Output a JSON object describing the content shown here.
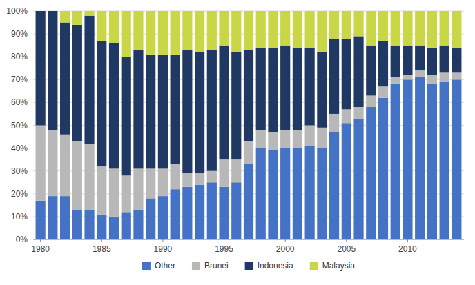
{
  "chart_data": {
    "type": "bar",
    "stacked": true,
    "grid": true,
    "legend": "bottom",
    "x": [
      1980,
      1981,
      1982,
      1983,
      1984,
      1985,
      1986,
      1987,
      1988,
      1989,
      1990,
      1991,
      1992,
      1993,
      1994,
      1995,
      1996,
      1997,
      1998,
      1999,
      2000,
      2001,
      2002,
      2003,
      2004,
      2005,
      2006,
      2007,
      2008,
      2009,
      2010,
      2011,
      2012,
      2013,
      2014
    ],
    "xlim": [
      1979.4,
      2014.6
    ],
    "xticks": [
      1980,
      1985,
      1990,
      1995,
      2000,
      2005,
      2010
    ],
    "ylim": [
      0,
      100
    ],
    "yticks": [
      {
        "value": 0,
        "label": "0%"
      },
      {
        "value": 10,
        "label": "10%"
      },
      {
        "value": 20,
        "label": "20%"
      },
      {
        "value": 30,
        "label": "30%"
      },
      {
        "value": 40,
        "label": "40%"
      },
      {
        "value": 50,
        "label": "50%"
      },
      {
        "value": 60,
        "label": "60%"
      },
      {
        "value": 70,
        "label": "70%"
      },
      {
        "value": 80,
        "label": "80%"
      },
      {
        "value": 90,
        "label": "90%"
      },
      {
        "value": 100,
        "label": "100%"
      }
    ],
    "series": [
      {
        "name": "Other",
        "color": "#4472C4",
        "values": [
          17,
          19,
          19,
          13,
          13,
          11,
          10,
          12,
          13,
          18,
          19,
          22,
          23,
          24,
          25,
          23,
          25,
          33,
          40,
          39,
          40,
          40,
          41,
          40,
          47,
          51,
          53,
          58,
          62,
          68,
          70,
          71,
          68,
          69,
          70
        ]
      },
      {
        "name": "Brunei",
        "color": "#B8B8B8",
        "values": [
          33,
          29,
          27,
          30,
          29,
          21,
          21,
          16,
          18,
          13,
          12,
          11,
          6,
          5,
          5,
          12,
          10,
          10,
          8,
          8,
          8,
          8,
          9,
          9,
          8,
          6,
          5,
          5,
          5,
          3,
          2,
          3,
          4,
          4,
          3
        ]
      },
      {
        "name": "Indonesia",
        "color": "#1F3864",
        "values": [
          50,
          52,
          49,
          51,
          56,
          55,
          55,
          52,
          52,
          50,
          50,
          48,
          54,
          53,
          53,
          50,
          47,
          40,
          36,
          37,
          37,
          36,
          34,
          33,
          33,
          31,
          31,
          22,
          20,
          14,
          13,
          11,
          12,
          12,
          11
        ]
      },
      {
        "name": "Malaysia",
        "color": "#C9D747",
        "values": [
          0,
          0,
          5,
          6,
          2,
          13,
          14,
          20,
          17,
          19,
          19,
          19,
          17,
          18,
          17,
          15,
          18,
          17,
          16,
          16,
          15,
          16,
          16,
          18,
          12,
          12,
          11,
          15,
          13,
          15,
          15,
          15,
          16,
          15,
          16
        ]
      }
    ]
  }
}
